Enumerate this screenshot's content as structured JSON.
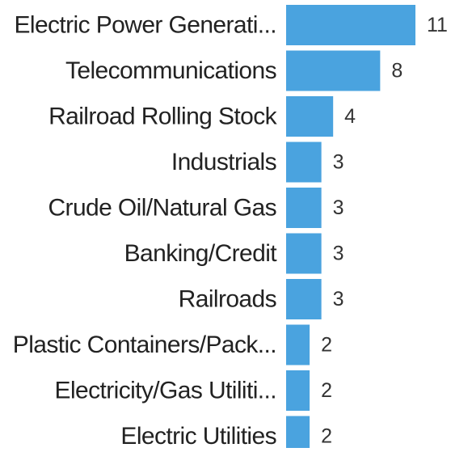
{
  "chart_data": {
    "type": "bar",
    "orientation": "horizontal",
    "categories": [
      "Electric Power Generati...",
      "Telecommunications",
      "Railroad Rolling Stock",
      "Industrials",
      "Crude Oil/Natural Gas",
      "Banking/Credit",
      "Railroads",
      "Plastic Containers/Pack...",
      "Electricity/Gas Utiliti...",
      "Electric Utilities"
    ],
    "values": [
      11,
      8,
      4,
      3,
      3,
      3,
      3,
      2,
      2,
      2
    ],
    "xlim": [
      0,
      11
    ],
    "grid": false,
    "bar_color": "#4aa3df"
  }
}
